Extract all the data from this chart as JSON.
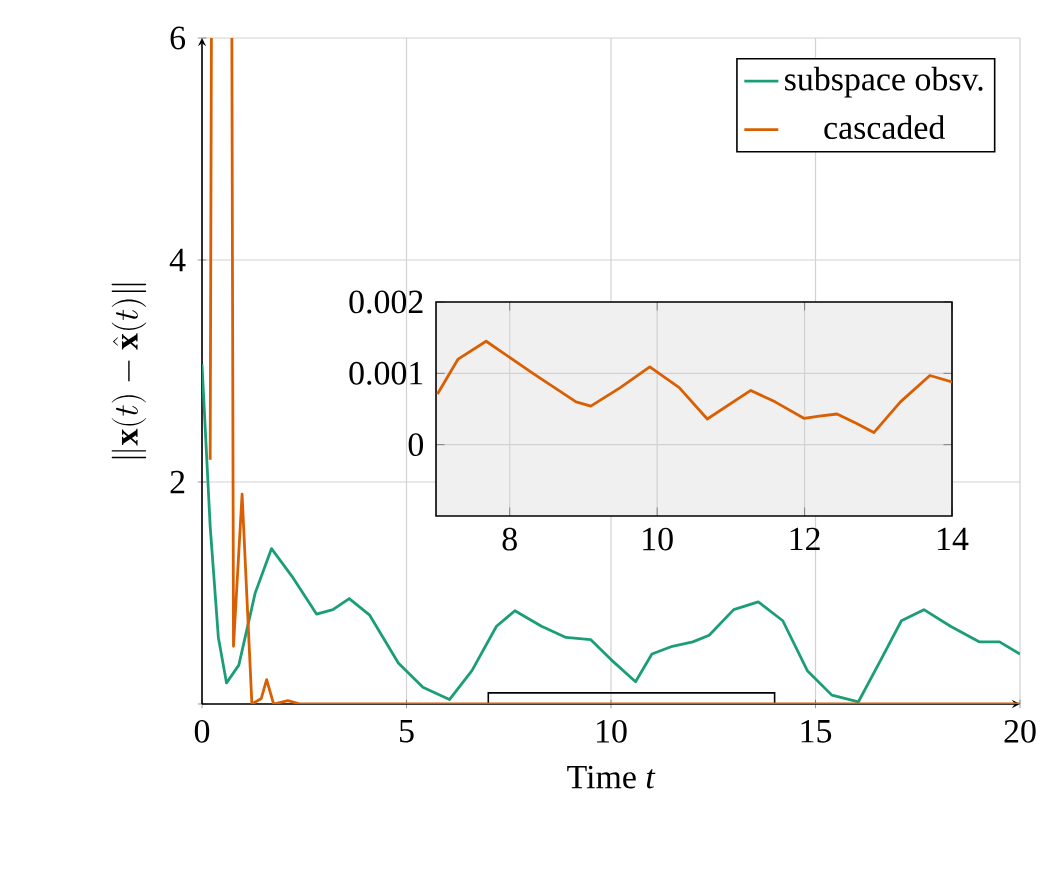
{
  "chart_data": [
    {
      "type": "line",
      "xlabel": "Time *t*",
      "ylabel": "\\|\\mathbf{x}(t)-\\hat{\\mathbf{x}}(t)\\|",
      "xlim": [
        0,
        20
      ],
      "ylim": [
        0,
        6
      ],
      "xticks": [
        0,
        5,
        10,
        15,
        20
      ],
      "yticks": [
        {
          "value": 0,
          "label": null
        },
        2,
        4,
        6
      ],
      "grid": true,
      "legend": "top right",
      "series": [
        {
          "name": "subspace obsv.",
          "color": "#1b9e77",
          "x": [
            0,
            0.2,
            0.4,
            0.6,
            0.9,
            1.3,
            1.7,
            2.2,
            2.8,
            3.2,
            3.6,
            4.1,
            4.8,
            5.4,
            6.05,
            6.6,
            7.2,
            7.65,
            8.3,
            8.9,
            9.5,
            10.0,
            10.6,
            11.0,
            11.5,
            12.0,
            12.4,
            13.0,
            13.6,
            14.2,
            14.8,
            15.4,
            16.05,
            16.6,
            17.1,
            17.65,
            18.3,
            19.0,
            19.5,
            20
          ],
          "values": [
            3.06,
            1.6,
            0.6,
            0.19,
            0.35,
            1.0,
            1.4,
            1.15,
            0.81,
            0.85,
            0.95,
            0.8,
            0.37,
            0.15,
            0.04,
            0.3,
            0.7,
            0.84,
            0.7,
            0.6,
            0.58,
            0.4,
            0.2,
            0.45,
            0.52,
            0.56,
            0.62,
            0.85,
            0.92,
            0.75,
            0.3,
            0.08,
            0.02,
            0.4,
            0.75,
            0.85,
            0.7,
            0.56,
            0.56,
            0.45
          ]
        },
        {
          "name": "cascaded",
          "color": "#d95f02",
          "x": [
            0.2,
            0.23,
            0.5,
            0.73,
            0.77,
            0.98,
            1.22,
            1.45,
            1.58,
            1.75,
            2.1,
            2.4,
            5,
            15,
            20
          ],
          "values": [
            2.2,
            6,
            null,
            6,
            0.52,
            1.89,
            0.0,
            0.05,
            0.22,
            0.0,
            0.03,
            0.0,
            0.0,
            0.0,
            0.0
          ]
        }
      ]
    },
    {
      "type": "line",
      "xlim": [
        7,
        14
      ],
      "ylim": [
        -0.001,
        0.002
      ],
      "xticks": [
        8,
        10,
        12,
        14
      ],
      "yticks": [
        0,
        {
          "value": 0.001,
          "label": "0.001"
        },
        {
          "value": 0.002,
          "label": "0.002"
        }
      ],
      "grid": true,
      "series": [
        {
          "color": "#d95f02",
          "x": [
            7.02,
            7.3,
            7.68,
            8.33,
            8.9,
            9.1,
            9.5,
            9.9,
            10.3,
            10.68,
            11.27,
            11.6,
            11.99,
            12.2,
            12.44,
            12.7,
            12.94,
            13.3,
            13.7,
            14
          ],
          "values": [
            0.00071,
            0.0012,
            0.00145,
            0.00099,
            0.0006,
            0.00054,
            0.0008,
            0.00109,
            0.0008,
            0.00036,
            0.00076,
            0.0006,
            0.00037,
            0.0004,
            0.00043,
            0.0003,
            0.00017,
            0.0006,
            0.00097,
            0.00088
          ]
        }
      ]
    }
  ]
}
